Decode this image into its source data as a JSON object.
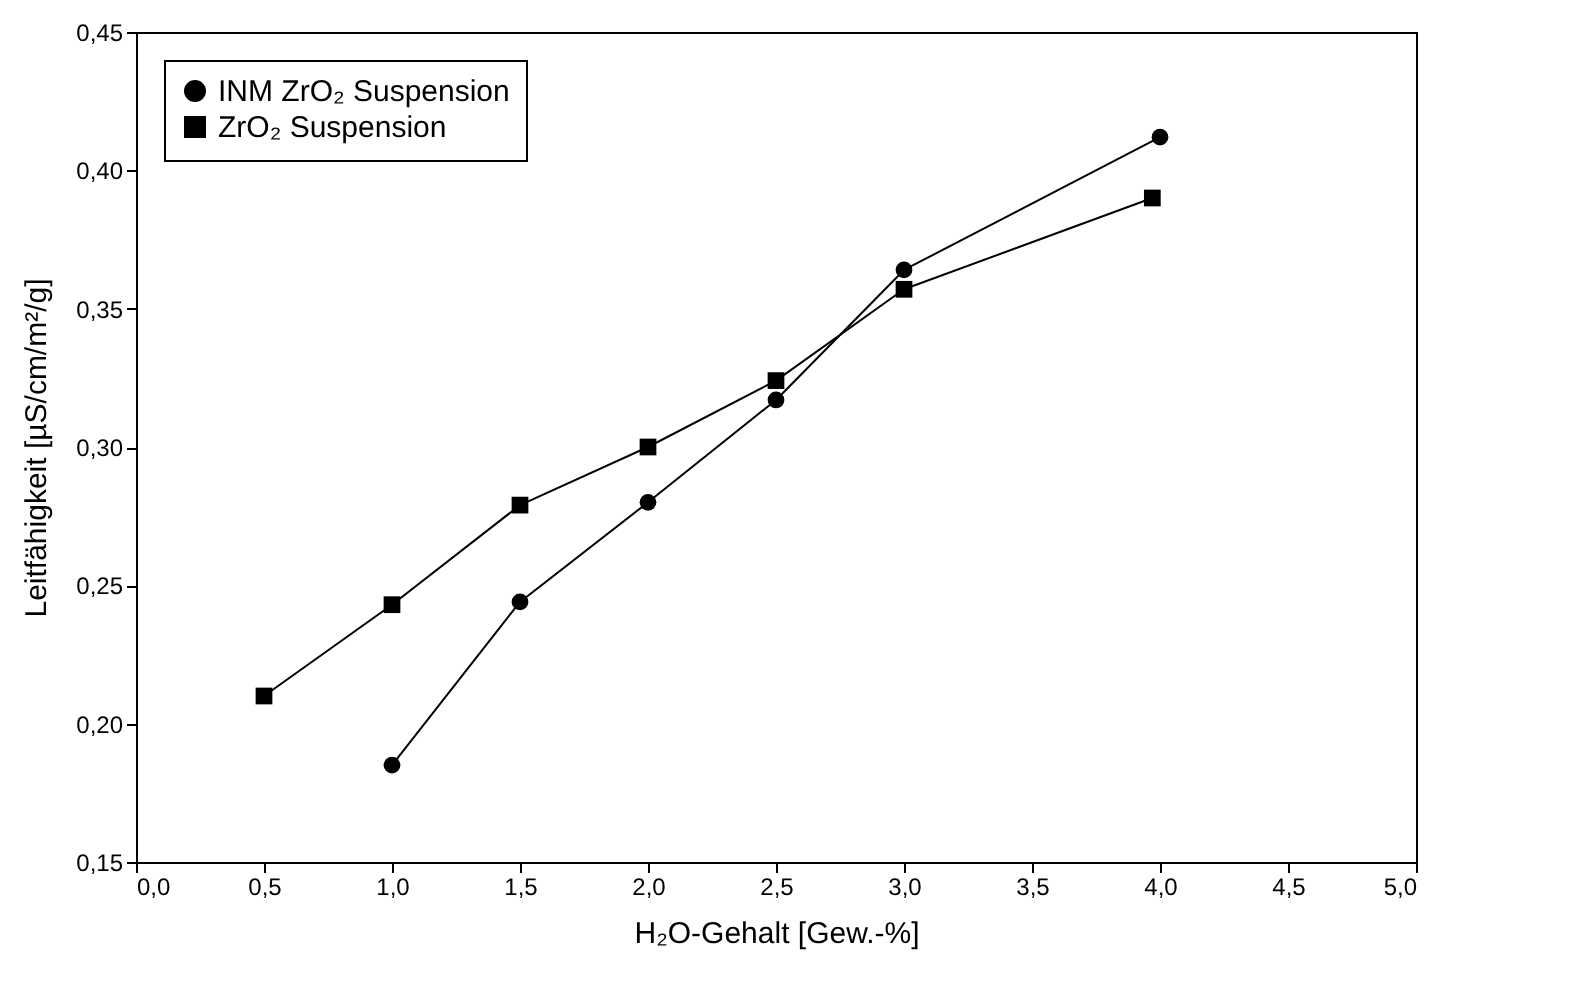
{
  "chart_data": {
    "type": "line",
    "xlabel": "H₂O-Gehalt [Gew.-%]",
    "ylabel": "Leitfähigkeit [µS/cm/m²/g]",
    "xlim": [
      0,
      5
    ],
    "xticks": [
      {
        "value": 0,
        "label": "0,0"
      },
      {
        "value": 0.5,
        "label": "0,5"
      },
      {
        "value": 1,
        "label": "1,0"
      },
      {
        "value": 1.5,
        "label": "1,5"
      },
      {
        "value": 2,
        "label": "2,0"
      },
      {
        "value": 2.5,
        "label": "2,5"
      },
      {
        "value": 3,
        "label": "3,0"
      },
      {
        "value": 3.5,
        "label": "3,5"
      },
      {
        "value": 4,
        "label": "4,0"
      },
      {
        "value": 4.5,
        "label": "4,5"
      },
      {
        "value": 5,
        "label": "5,0"
      }
    ],
    "ylim": [
      0.15,
      0.45
    ],
    "yticks": [
      {
        "value": 0.15,
        "label": "0,15"
      },
      {
        "value": 0.2,
        "label": "0,20"
      },
      {
        "value": 0.25,
        "label": "0,25"
      },
      {
        "value": 0.3,
        "label": "0,30"
      },
      {
        "value": 0.35,
        "label": "0,35"
      },
      {
        "value": 0.4,
        "label": "0,40"
      },
      {
        "value": 0.45,
        "label": "0,45"
      }
    ],
    "legend": "top left",
    "grid": false,
    "series": [
      {
        "name": "INM ZrO₂ Suspension",
        "color": "#000000",
        "marker": "circle",
        "x": [
          1,
          1.5,
          2,
          2.5,
          3,
          4
        ],
        "values": [
          0.185,
          0.244,
          0.28,
          0.317,
          0.364,
          0.412
        ]
      },
      {
        "name": "ZrO₂ Suspension",
        "color": "#000000",
        "marker": "square",
        "x": [
          0.5,
          1,
          1.5,
          2,
          2.5,
          3,
          3.97
        ],
        "values": [
          0.21,
          0.243,
          0.279,
          0.3,
          0.324,
          0.357,
          0.39
        ]
      }
    ]
  }
}
